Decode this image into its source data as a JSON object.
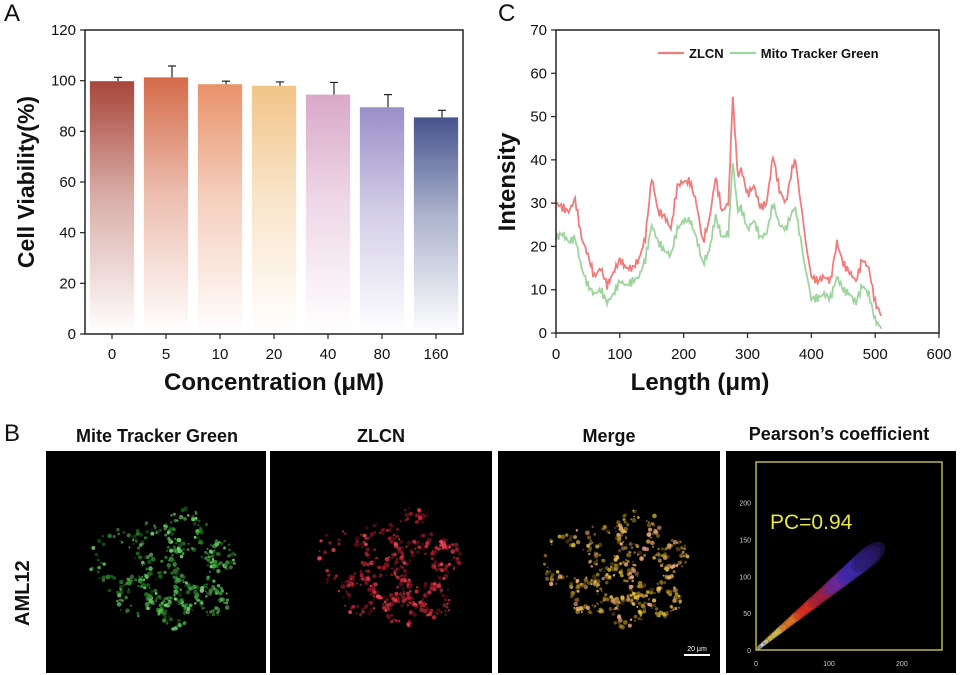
{
  "panels": {
    "A": "A",
    "B": "B",
    "C": "C"
  },
  "chart_data": [
    {
      "type": "bar",
      "panel": "A",
      "categories": [
        "0",
        "5",
        "10",
        "20",
        "40",
        "80",
        "160"
      ],
      "values": [
        99.8,
        101.3,
        98.6,
        98.0,
        94.5,
        89.5,
        85.5
      ],
      "errors": [
        1.5,
        4.5,
        1.2,
        1.5,
        4.8,
        5.0,
        2.8
      ],
      "xlabel": "Concentration (μM)",
      "ylabel": "Cell Viability(%)",
      "ylim": [
        0,
        120
      ],
      "yticks": [
        "0",
        "20",
        "40",
        "60",
        "80",
        "100",
        "120"
      ],
      "colors": [
        "#a8463a",
        "#d46b4a",
        "#e8926a",
        "#f2c488",
        "#d9a8c8",
        "#9a8ec8",
        "#46548e"
      ],
      "grid": false
    },
    {
      "type": "line",
      "panel": "C",
      "xlabel": "Length (μm)",
      "ylabel": "Intensity",
      "xlim": [
        0,
        600
      ],
      "ylim": [
        0,
        70
      ],
      "xticks": [
        "0",
        "100",
        "200",
        "300",
        "400",
        "500",
        "600"
      ],
      "yticks": [
        "0",
        "10",
        "20",
        "30",
        "40",
        "50",
        "60",
        "70"
      ],
      "legend_position": "top-right",
      "grid": false,
      "series": [
        {
          "name": "ZLCN",
          "color": "#f07c7c",
          "x": [
            0,
            10,
            20,
            30,
            40,
            50,
            60,
            70,
            80,
            90,
            100,
            110,
            120,
            130,
            140,
            150,
            160,
            170,
            180,
            190,
            200,
            210,
            220,
            230,
            240,
            250,
            260,
            270,
            277,
            285,
            290,
            300,
            310,
            320,
            330,
            340,
            350,
            360,
            370,
            375,
            385,
            400,
            410,
            420,
            430,
            440,
            450,
            460,
            470,
            480,
            490,
            500,
            510
          ],
          "y": [
            30,
            29,
            28,
            31,
            22,
            18,
            13,
            15,
            11,
            14,
            17,
            15,
            15,
            17,
            22,
            36,
            28,
            27,
            24,
            34,
            35,
            35,
            30,
            21,
            26,
            36,
            28,
            30,
            55,
            36,
            38,
            32,
            34,
            29,
            30,
            41,
            33,
            30,
            38,
            40,
            28,
            13,
            12,
            13,
            12,
            21,
            16,
            14,
            12,
            17,
            15,
            7,
            4
          ]
        },
        {
          "name": "Mito Tracker Green",
          "color": "#9fd49f",
          "x": [
            0,
            10,
            20,
            30,
            40,
            50,
            60,
            70,
            80,
            90,
            100,
            110,
            120,
            130,
            140,
            150,
            160,
            170,
            180,
            190,
            200,
            210,
            220,
            230,
            240,
            250,
            260,
            270,
            277,
            285,
            290,
            300,
            310,
            320,
            330,
            340,
            350,
            360,
            370,
            375,
            385,
            400,
            410,
            420,
            430,
            440,
            450,
            460,
            470,
            480,
            490,
            500,
            510
          ],
          "y": [
            22,
            23,
            21,
            22,
            15,
            11,
            9,
            10,
            7,
            9,
            12,
            11,
            12,
            13,
            17,
            25,
            21,
            19,
            18,
            24,
            26,
            26,
            22,
            16,
            19,
            27,
            22,
            23,
            40,
            28,
            29,
            24,
            26,
            22,
            23,
            30,
            25,
            24,
            28,
            29,
            20,
            8,
            8,
            9,
            8,
            13,
            10,
            9,
            7,
            11,
            9,
            3,
            1
          ]
        }
      ]
    },
    {
      "type": "heatmap",
      "panel": "B-pearson",
      "title": "Pearson’s coefficient",
      "annotation": "PC=0.94",
      "xticks": [
        "0",
        "100",
        "200"
      ],
      "yticks": [
        "0",
        "50",
        "100",
        "150",
        "200"
      ],
      "xlim": [
        0,
        255
      ],
      "ylim": [
        0,
        255
      ]
    }
  ],
  "micrographs": {
    "row_label": "AML12",
    "titles": [
      "Mite Tracker Green",
      "ZLCN",
      "Merge"
    ],
    "scale_bar": "20 μm"
  }
}
